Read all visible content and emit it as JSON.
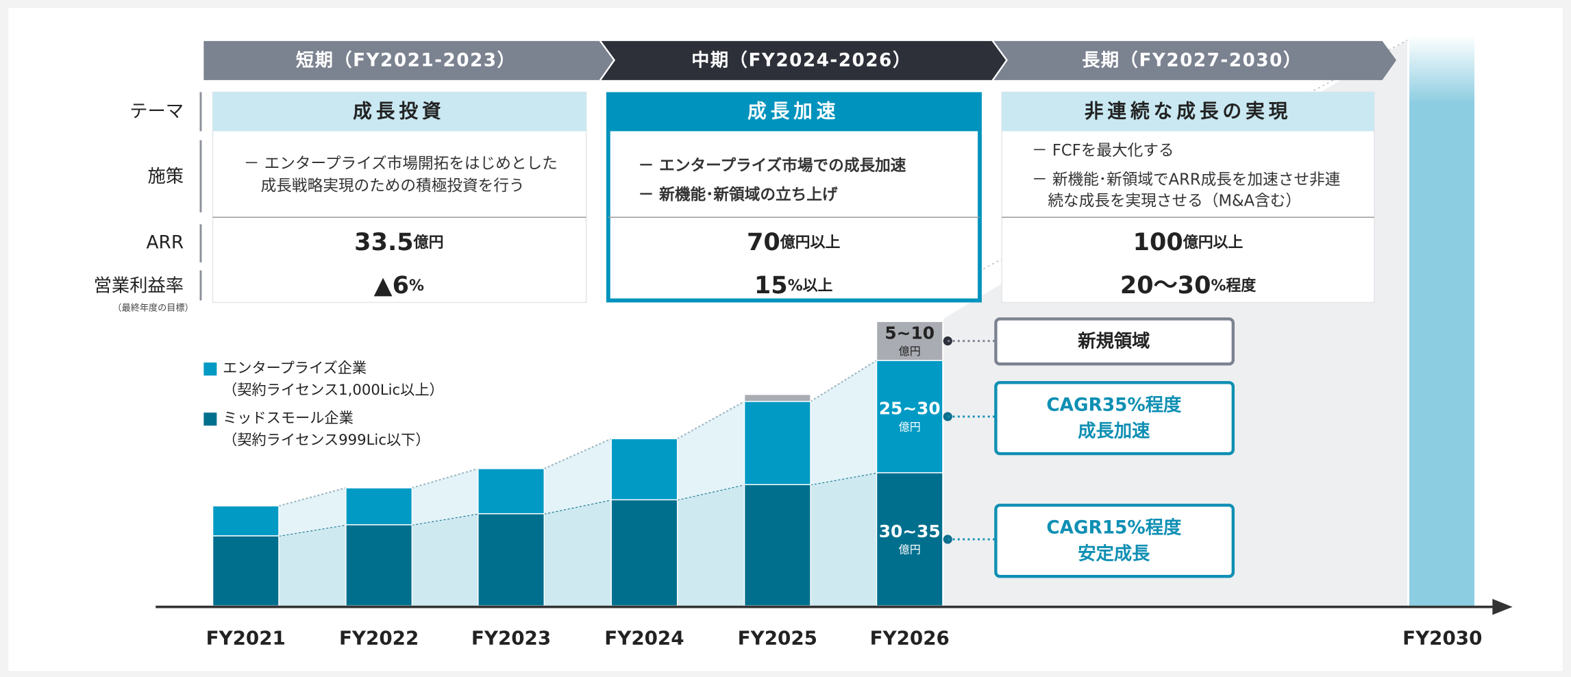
{
  "phases": [
    "短期（FY2021-2023）",
    "中期（FY2024-2026）",
    "長期（FY2027-2030）"
  ],
  "row_labels": [
    "テーマ",
    "施策",
    "ARR",
    "営業利益率"
  ],
  "row_note": "（最終年度の目標）",
  "columns": [
    {
      "theme": "成長投資",
      "measures": [
        "－ エンタープライズ市場開拓をはじめとした",
        "成長戦略実現のための積極投資を行う"
      ],
      "arr": "33.5",
      "arr_unit": "億円",
      "margin": "▲6",
      "margin_unit": "%"
    },
    {
      "theme": "成長加速",
      "measures": [
        "－ エンタープライズ市場での成長加速",
        "－ 新機能･新領域の立ち上げ"
      ],
      "arr": "70",
      "arr_unit": "億円以上",
      "margin": "15",
      "margin_unit": "%以上"
    },
    {
      "theme": "非連続な成長の実現",
      "measures": [
        "－ FCFを最大化する",
        "－ 新機能･新領域でARR成長を加速させ非連",
        "続な成長を実現させる（M&A含む）"
      ],
      "arr": "100",
      "arr_unit": "億円以上",
      "margin": "20～30",
      "margin_unit": "%程度"
    }
  ],
  "chart_data": {
    "type": "stacked_bar",
    "categories": [
      "FY2021",
      "FY2022",
      "FY2023",
      "FY2024",
      "FY2025",
      "FY2026",
      "FY2030"
    ],
    "ylim": [
      0,
      120
    ],
    "series": [
      {
        "name": "ミッドスモール企業",
        "note": "（契約ライセンス999Lic以下）",
        "color": "#006f8e",
        "values": [
          17.1,
          19.8,
          22.5,
          25.9,
          29.6,
          32.5,
          null
        ],
        "value_labels": [
          null,
          null,
          null,
          null,
          null,
          "30~35",
          null
        ],
        "value_unit": "億円"
      },
      {
        "name": "エンタープライズ企業",
        "note": "（契約ライセンス1,000Lic以上）",
        "color": "#009ac4",
        "values": [
          7.3,
          9.0,
          11.0,
          14.9,
          20.3,
          27.4,
          null
        ],
        "value_labels": [
          null,
          null,
          null,
          null,
          null,
          "25~30",
          null
        ],
        "value_unit": "億円"
      },
      {
        "name": "新規領域",
        "color": "#a9acb2",
        "values": [
          null,
          null,
          null,
          null,
          1.7,
          9.5,
          null
        ],
        "value_labels": [
          null,
          null,
          null,
          null,
          null,
          "5~10",
          null
        ],
        "value_unit": "億円"
      }
    ],
    "callouts": [
      {
        "series": 1,
        "label": "CAGR35%程度",
        "sub": "成長加速"
      },
      {
        "series": 0,
        "label": "CAGR15%程度",
        "sub": "安定成長"
      }
    ]
  }
}
